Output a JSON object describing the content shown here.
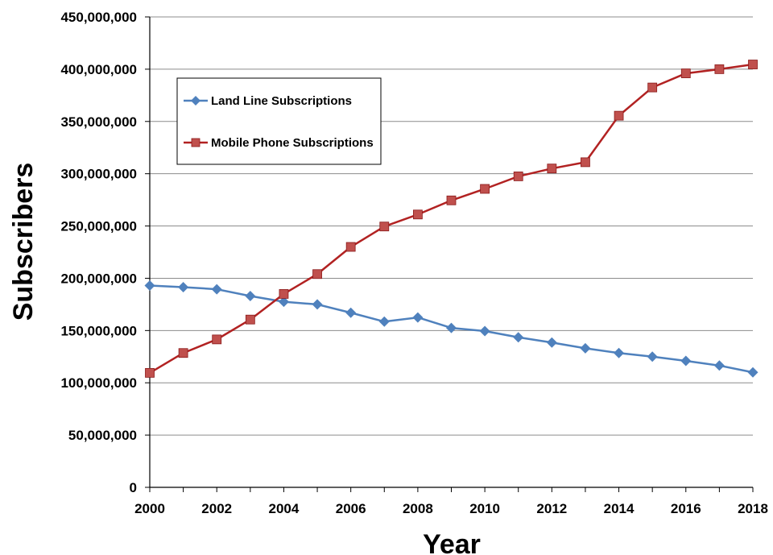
{
  "chart_data": {
    "type": "line",
    "title": "",
    "xlabel": "Year",
    "ylabel": "Subscribers",
    "x": [
      2000,
      2001,
      2002,
      2003,
      2004,
      2005,
      2006,
      2007,
      2008,
      2009,
      2010,
      2011,
      2012,
      2013,
      2014,
      2015,
      2016,
      2017,
      2018
    ],
    "xlim": [
      2000,
      2018
    ],
    "ylim": [
      0,
      450000000
    ],
    "x_ticks": [
      "2000",
      "2002",
      "2004",
      "2006",
      "2008",
      "2010",
      "2012",
      "2014",
      "2016",
      "2018"
    ],
    "y_ticks": [
      "0",
      "50,000,000",
      "100,000,000",
      "150,000,000",
      "200,000,000",
      "250,000,000",
      "300,000,000",
      "350,000,000",
      "400,000,000",
      "450,000,000"
    ],
    "grid": "horizontal",
    "legend_position": "top-left",
    "series": [
      {
        "name": "Land Line Subscriptions",
        "color": "#4f81bd",
        "marker": "diamond",
        "values": [
          193000000,
          191500000,
          189500000,
          183000000,
          177500000,
          175000000,
          167000000,
          158500000,
          162500000,
          152500000,
          149500000,
          143500000,
          138500000,
          133000000,
          128500000,
          125000000,
          121000000,
          116500000,
          110000000
        ]
      },
      {
        "name": "Mobile Phone Subscriptions",
        "color": "#b22222",
        "marker": "square",
        "values": [
          109500000,
          128500000,
          141500000,
          160500000,
          185000000,
          204000000,
          230000000,
          249500000,
          261000000,
          274500000,
          285500000,
          297500000,
          305000000,
          311000000,
          355500000,
          382500000,
          396000000,
          400000000,
          404500000
        ]
      }
    ]
  }
}
